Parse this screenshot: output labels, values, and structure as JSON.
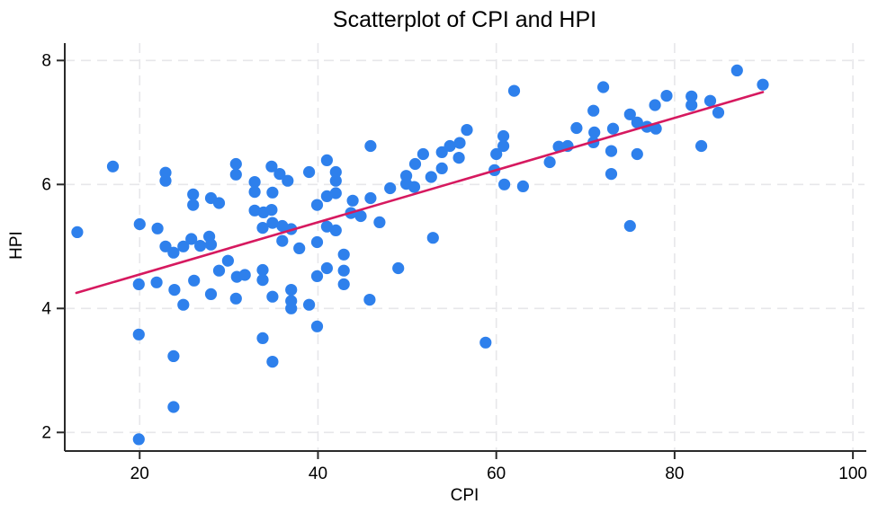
{
  "page": {
    "background": "#ffffff"
  },
  "chart_data": {
    "type": "scatter",
    "title": "Scatterplot of CPI and HPI",
    "xlabel": "CPI",
    "ylabel": "HPI",
    "xlim": [
      11.6,
      101.3
    ],
    "ylim": [
      1.7,
      8.28
    ],
    "x_ticks": [
      20,
      40,
      60,
      80,
      100
    ],
    "y_ticks": [
      2,
      4,
      6,
      8
    ],
    "grid": "dashed light-gray gridlines at every x and y tick",
    "legend": "none",
    "colors": {
      "point": "#2e80ec",
      "trend_line": "#d6195f",
      "axis": "#2a2a2a",
      "gridline": "#e7e7ea",
      "text": "#000000"
    },
    "series": [
      {
        "name": "observations",
        "type": "scatter",
        "marker": "filled-circle",
        "marker_radius": 6.6,
        "color": "#2e80ec",
        "points": [
          [
            17.0,
            6.29
          ],
          [
            22.9,
            6.19
          ],
          [
            22.9,
            6.06
          ],
          [
            30.8,
            6.33
          ],
          [
            30.8,
            6.16
          ],
          [
            32.9,
            6.04
          ],
          [
            32.9,
            5.88
          ],
          [
            34.9,
            5.87
          ],
          [
            26.0,
            5.84
          ],
          [
            26.0,
            5.67
          ],
          [
            28.0,
            5.78
          ],
          [
            28.9,
            5.7
          ],
          [
            32.9,
            5.58
          ],
          [
            33.9,
            5.55
          ],
          [
            34.8,
            5.59
          ],
          [
            13.0,
            5.23
          ],
          [
            20.0,
            5.36
          ],
          [
            22.0,
            5.29
          ],
          [
            33.8,
            5.3
          ],
          [
            45.9,
            6.62
          ],
          [
            41.0,
            6.39
          ],
          [
            34.8,
            6.29
          ],
          [
            35.7,
            6.17
          ],
          [
            39.0,
            6.2
          ],
          [
            36.6,
            6.06
          ],
          [
            42.0,
            6.2
          ],
          [
            42.0,
            6.06
          ],
          [
            48.1,
            5.94
          ],
          [
            49.9,
            6.14
          ],
          [
            49.9,
            6.01
          ],
          [
            50.9,
            6.33
          ],
          [
            51.8,
            6.49
          ],
          [
            53.9,
            6.52
          ],
          [
            53.9,
            6.26
          ],
          [
            54.8,
            6.62
          ],
          [
            55.9,
            6.67
          ],
          [
            55.8,
            6.43
          ],
          [
            52.7,
            6.12
          ],
          [
            50.8,
            5.96
          ],
          [
            41.0,
            5.81
          ],
          [
            42.0,
            5.86
          ],
          [
            43.9,
            5.74
          ],
          [
            45.9,
            5.78
          ],
          [
            39.9,
            5.67
          ],
          [
            44.8,
            5.49
          ],
          [
            46.9,
            5.39
          ],
          [
            43.7,
            5.54
          ],
          [
            34.9,
            5.38
          ],
          [
            36.0,
            5.33
          ],
          [
            37.0,
            5.28
          ],
          [
            41.0,
            5.32
          ],
          [
            42.0,
            5.26
          ],
          [
            36.0,
            5.09
          ],
          [
            37.9,
            4.97
          ],
          [
            39.9,
            5.07
          ],
          [
            52.9,
            5.14
          ],
          [
            62.0,
            7.51
          ],
          [
            72.0,
            7.57
          ],
          [
            70.9,
            7.19
          ],
          [
            77.8,
            7.28
          ],
          [
            75.0,
            7.13
          ],
          [
            75.8,
            7.0
          ],
          [
            56.7,
            6.88
          ],
          [
            69.0,
            6.91
          ],
          [
            73.1,
            6.9
          ],
          [
            76.9,
            6.93
          ],
          [
            77.9,
            6.9
          ],
          [
            71.0,
            6.84
          ],
          [
            70.9,
            6.68
          ],
          [
            60.8,
            6.78
          ],
          [
            60.8,
            6.62
          ],
          [
            67.0,
            6.61
          ],
          [
            68.0,
            6.62
          ],
          [
            60.0,
            6.49
          ],
          [
            59.8,
            6.23
          ],
          [
            66.0,
            6.36
          ],
          [
            72.9,
            6.54
          ],
          [
            75.8,
            6.49
          ],
          [
            72.9,
            6.17
          ],
          [
            60.9,
            6.0
          ],
          [
            63.0,
            5.97
          ],
          [
            75.0,
            5.33
          ],
          [
            87.0,
            7.84
          ],
          [
            89.9,
            7.61
          ],
          [
            79.1,
            7.43
          ],
          [
            81.9,
            7.42
          ],
          [
            81.9,
            7.28
          ],
          [
            84.0,
            7.35
          ],
          [
            84.9,
            7.16
          ],
          [
            83.0,
            6.62
          ],
          [
            19.9,
            4.39
          ],
          [
            21.9,
            4.42
          ],
          [
            22.9,
            5.0
          ],
          [
            23.8,
            4.9
          ],
          [
            24.9,
            5.0
          ],
          [
            25.8,
            5.12
          ],
          [
            26.8,
            5.01
          ],
          [
            27.8,
            5.16
          ],
          [
            28.0,
            5.03
          ],
          [
            26.1,
            4.45
          ],
          [
            23.9,
            4.3
          ],
          [
            28.0,
            4.23
          ],
          [
            24.9,
            4.06
          ],
          [
            29.9,
            4.77
          ],
          [
            28.9,
            4.61
          ],
          [
            30.9,
            4.51
          ],
          [
            31.8,
            4.54
          ],
          [
            33.8,
            4.62
          ],
          [
            33.8,
            4.46
          ],
          [
            30.8,
            4.16
          ],
          [
            19.9,
            3.58
          ],
          [
            23.8,
            3.23
          ],
          [
            23.8,
            2.41
          ],
          [
            19.9,
            1.89
          ],
          [
            33.8,
            3.52
          ],
          [
            42.9,
            4.87
          ],
          [
            41.0,
            4.65
          ],
          [
            42.9,
            4.61
          ],
          [
            39.9,
            4.52
          ],
          [
            42.9,
            4.39
          ],
          [
            37.0,
            4.3
          ],
          [
            34.9,
            4.19
          ],
          [
            37.0,
            4.12
          ],
          [
            37.0,
            4.0
          ],
          [
            39.0,
            4.06
          ],
          [
            45.8,
            4.14
          ],
          [
            49.0,
            4.65
          ],
          [
            39.9,
            3.71
          ],
          [
            34.9,
            3.14
          ],
          [
            58.8,
            3.45
          ]
        ]
      },
      {
        "name": "fitted-trend-line",
        "type": "line",
        "color": "#d6195f",
        "width": 2.6,
        "points": [
          [
            12.9,
            4.25
          ],
          [
            89.9,
            7.49
          ]
        ]
      }
    ]
  }
}
